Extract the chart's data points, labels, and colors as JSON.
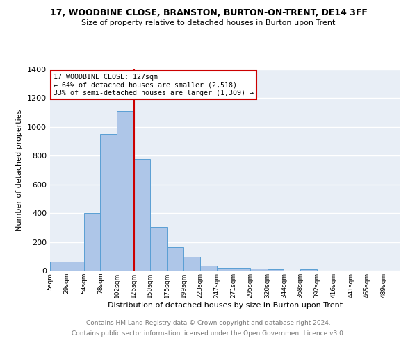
{
  "title": "17, WOODBINE CLOSE, BRANSTON, BURTON-ON-TRENT, DE14 3FF",
  "subtitle": "Size of property relative to detached houses in Burton upon Trent",
  "xlabel": "Distribution of detached houses by size in Burton upon Trent",
  "ylabel": "Number of detached properties",
  "footer_line1": "Contains HM Land Registry data © Crown copyright and database right 2024.",
  "footer_line2": "Contains public sector information licensed under the Open Government Licence v3.0.",
  "bin_labels": [
    "5sqm",
    "29sqm",
    "54sqm",
    "78sqm",
    "102sqm",
    "126sqm",
    "150sqm",
    "175sqm",
    "199sqm",
    "223sqm",
    "247sqm",
    "271sqm",
    "295sqm",
    "320sqm",
    "344sqm",
    "368sqm",
    "392sqm",
    "416sqm",
    "441sqm",
    "465sqm",
    "489sqm"
  ],
  "bin_edges": [
    5,
    29,
    54,
    78,
    102,
    126,
    150,
    175,
    199,
    223,
    247,
    271,
    295,
    320,
    344,
    368,
    392,
    416,
    441,
    465,
    489
  ],
  "bar_heights": [
    65,
    65,
    400,
    950,
    1110,
    775,
    305,
    165,
    95,
    35,
    20,
    20,
    15,
    10,
    0,
    10,
    0,
    0,
    0,
    0
  ],
  "bar_color": "#aec6e8",
  "bar_edge_color": "#5a9fd4",
  "bg_color": "#e8eef6",
  "grid_color": "#ffffff",
  "vline_x": 127,
  "vline_color": "#cc0000",
  "annotation_text": "17 WOODBINE CLOSE: 127sqm\n← 64% of detached houses are smaller (2,518)\n33% of semi-detached houses are larger (1,309) →",
  "annotation_box_color": "#cc0000",
  "ylim": [
    0,
    1400
  ],
  "yticks": [
    0,
    200,
    400,
    600,
    800,
    1000,
    1200,
    1400
  ]
}
